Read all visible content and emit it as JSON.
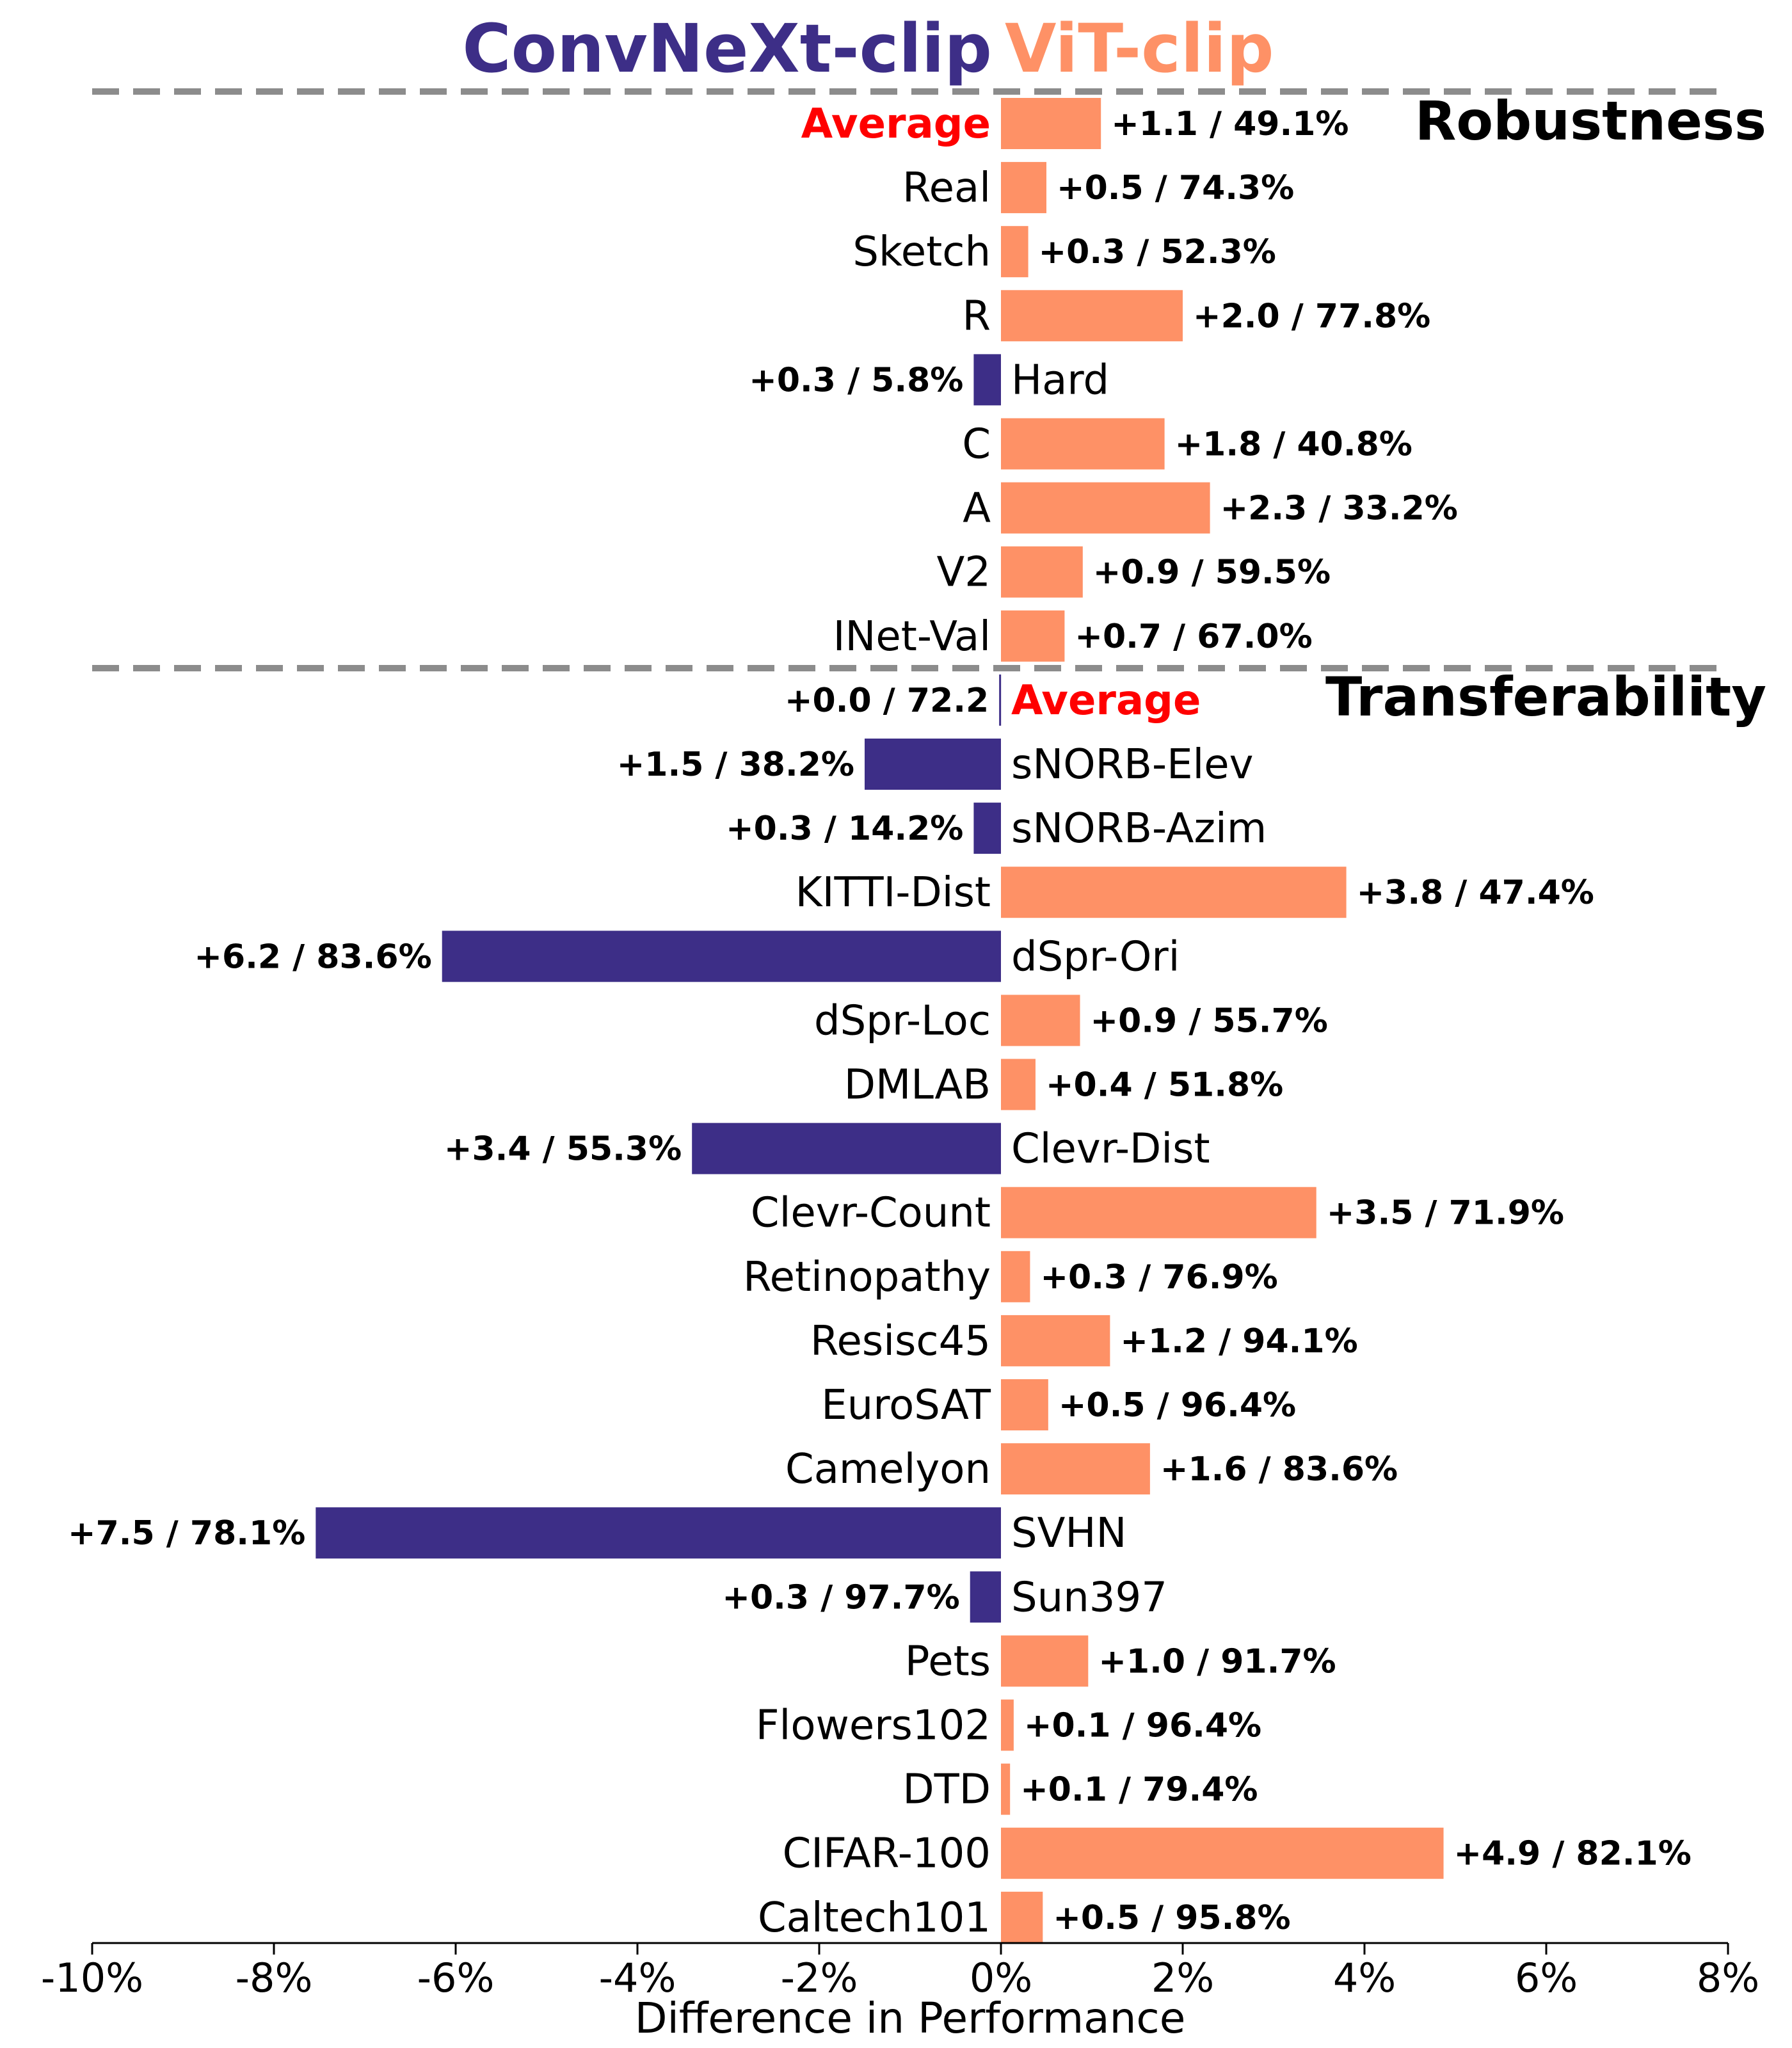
{
  "colors": {
    "convnext": "#3d2e87",
    "vit": "#fe9166",
    "average_label": "#ff0000",
    "divider": "#8c8c8c"
  },
  "legend": {
    "left": "ConvNeXt-clip",
    "right": "ViT-clip"
  },
  "sections": {
    "robustness": "Robustness",
    "transferability": "Transferability"
  },
  "chart_data": {
    "type": "bar",
    "orientation": "horizontal",
    "xlabel": "Difference in Performance",
    "xlim": [
      -10,
      8
    ],
    "xticks": [
      "-10%",
      "-8%",
      "-6%",
      "-4%",
      "-2%",
      "0%",
      "2%",
      "4%",
      "6%",
      "8%"
    ],
    "series": [
      {
        "name": "ConvNeXt-clip",
        "sign": "negative"
      },
      {
        "name": "ViT-clip",
        "sign": "positive"
      }
    ],
    "rows": [
      {
        "label": "Average",
        "value": 1.1,
        "text": "+1.1 / 49.1%",
        "group": "Robustness",
        "average": true
      },
      {
        "label": "Real",
        "value": 0.5,
        "text": "+0.5 / 74.3%",
        "group": "Robustness"
      },
      {
        "label": "Sketch",
        "value": 0.3,
        "text": "+0.3 / 52.3%",
        "group": "Robustness"
      },
      {
        "label": "R",
        "value": 2.0,
        "text": "+2.0 / 77.8%",
        "group": "Robustness"
      },
      {
        "label": "Hard",
        "value": -0.3,
        "text": "+0.3 / 5.8%",
        "group": "Robustness"
      },
      {
        "label": "C",
        "value": 1.8,
        "text": "+1.8 / 40.8%",
        "group": "Robustness"
      },
      {
        "label": "A",
        "value": 2.3,
        "text": "+2.3 / 33.2%",
        "group": "Robustness"
      },
      {
        "label": "V2",
        "value": 0.9,
        "text": "+0.9 / 59.5%",
        "group": "Robustness"
      },
      {
        "label": "INet-Val",
        "value": 0.7,
        "text": "+0.7 / 67.0%",
        "group": "Robustness"
      },
      {
        "label": "Average",
        "value": -0.02,
        "text": "+0.0 / 72.2",
        "group": "Transferability",
        "average": true
      },
      {
        "label": "sNORB-Elev",
        "value": -1.5,
        "text": "+1.5 / 38.2%",
        "group": "Transferability"
      },
      {
        "label": "sNORB-Azim",
        "value": -0.3,
        "text": "+0.3 / 14.2%",
        "group": "Transferability"
      },
      {
        "label": "KITTI-Dist",
        "value": 3.8,
        "text": "+3.8 / 47.4%",
        "group": "Transferability"
      },
      {
        "label": "dSpr-Ori",
        "value": -6.15,
        "text": "+6.2 / 83.6%",
        "group": "Transferability"
      },
      {
        "label": "dSpr-Loc",
        "value": 0.87,
        "text": "+0.9 / 55.7%",
        "group": "Transferability"
      },
      {
        "label": "DMLAB",
        "value": 0.38,
        "text": "+0.4 / 51.8%",
        "group": "Transferability"
      },
      {
        "label": "Clevr-Dist",
        "value": -3.4,
        "text": "+3.4 / 55.3%",
        "group": "Transferability"
      },
      {
        "label": "Clevr-Count",
        "value": 3.47,
        "text": "+3.5 / 71.9%",
        "group": "Transferability"
      },
      {
        "label": "Retinopathy",
        "value": 0.32,
        "text": "+0.3 / 76.9%",
        "group": "Transferability"
      },
      {
        "label": "Resisc45",
        "value": 1.2,
        "text": "+1.2 / 94.1%",
        "group": "Transferability"
      },
      {
        "label": "EuroSAT",
        "value": 0.52,
        "text": "+0.5 / 96.4%",
        "group": "Transferability"
      },
      {
        "label": "Camelyon",
        "value": 1.64,
        "text": "+1.6 / 83.6%",
        "group": "Transferability"
      },
      {
        "label": "SVHN",
        "value": -7.54,
        "text": "+7.5 / 78.1%",
        "group": "Transferability"
      },
      {
        "label": "Sun397",
        "value": -0.34,
        "text": "+0.3 / 97.7%",
        "group": "Transferability"
      },
      {
        "label": "Pets",
        "value": 0.96,
        "text": "+1.0 / 91.7%",
        "group": "Transferability"
      },
      {
        "label": "Flowers102",
        "value": 0.14,
        "text": "+0.1 / 96.4%",
        "group": "Transferability"
      },
      {
        "label": "DTD",
        "value": 0.1,
        "text": "+0.1 / 79.4%",
        "group": "Transferability"
      },
      {
        "label": "CIFAR-100",
        "value": 4.87,
        "text": "+4.9 / 82.1%",
        "group": "Transferability"
      },
      {
        "label": "Caltech101",
        "value": 0.46,
        "text": "+0.5 / 95.8%",
        "group": "Transferability"
      }
    ]
  }
}
